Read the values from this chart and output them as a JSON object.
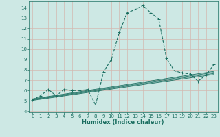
{
  "xlabel": "Humidex (Indice chaleur)",
  "bg_color": "#cde8e4",
  "grid_color": "#d4b8b0",
  "line_color": "#1a6e60",
  "xlim": [
    -0.5,
    23.5
  ],
  "ylim": [
    3.9,
    14.6
  ],
  "yticks": [
    4,
    5,
    6,
    7,
    8,
    9,
    10,
    11,
    12,
    13,
    14
  ],
  "xticks": [
    0,
    1,
    2,
    3,
    4,
    5,
    6,
    7,
    8,
    9,
    10,
    11,
    12,
    13,
    14,
    15,
    16,
    17,
    18,
    19,
    20,
    21,
    22,
    23
  ],
  "series": [
    [
      0,
      5.1
    ],
    [
      1,
      5.5
    ],
    [
      2,
      6.1
    ],
    [
      3,
      5.5
    ],
    [
      4,
      6.1
    ],
    [
      5,
      6.0
    ],
    [
      6,
      6.0
    ],
    [
      7,
      6.1
    ],
    [
      8,
      4.6
    ],
    [
      9,
      7.8
    ],
    [
      10,
      9.0
    ],
    [
      11,
      11.6
    ],
    [
      12,
      13.5
    ],
    [
      13,
      13.8
    ],
    [
      14,
      14.2
    ],
    [
      15,
      13.5
    ],
    [
      16,
      12.9
    ],
    [
      17,
      9.1
    ],
    [
      18,
      7.9
    ],
    [
      19,
      7.7
    ],
    [
      20,
      7.6
    ],
    [
      21,
      6.9
    ],
    [
      22,
      7.5
    ],
    [
      23,
      8.5
    ]
  ],
  "trend_lines": [
    [
      [
        0,
        5.05
      ],
      [
        23,
        7.55
      ]
    ],
    [
      [
        0,
        5.1
      ],
      [
        23,
        7.65
      ]
    ],
    [
      [
        0,
        5.15
      ],
      [
        23,
        7.75
      ]
    ],
    [
      [
        0,
        5.2
      ],
      [
        23,
        7.85
      ]
    ]
  ],
  "xlabel_fontsize": 6.0,
  "tick_fontsize": 5.0
}
